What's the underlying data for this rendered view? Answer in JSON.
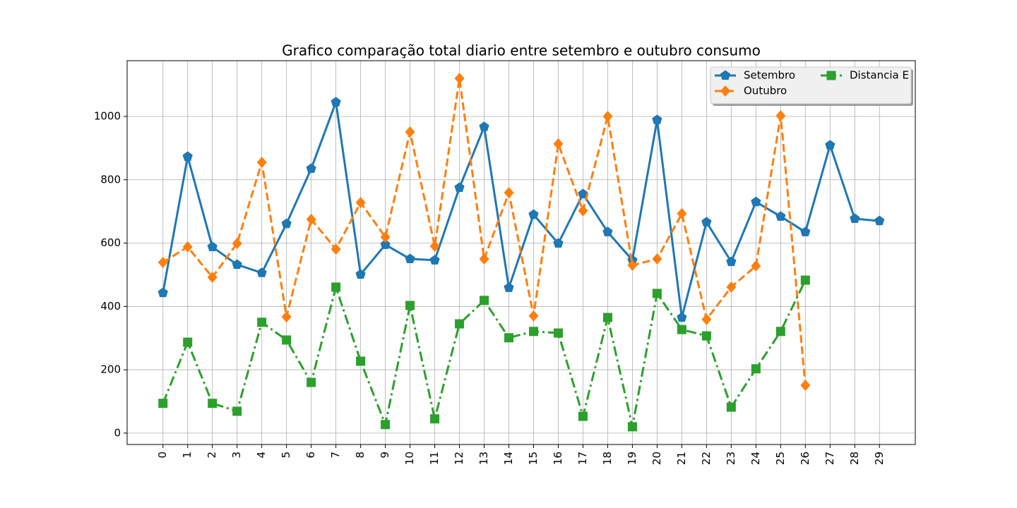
{
  "chart_data": {
    "type": "line",
    "title": "Grafico comparação total diario entre setembro e outubro consumo",
    "x": [
      0,
      1,
      2,
      3,
      4,
      5,
      6,
      7,
      8,
      9,
      10,
      11,
      12,
      13,
      14,
      15,
      16,
      17,
      18,
      19,
      20,
      21,
      22,
      23,
      24,
      25,
      26,
      27,
      28,
      29
    ],
    "series": [
      {
        "name": "Setembro",
        "color": "#1f77b4",
        "linestyle": "solid",
        "marker": "pentagon",
        "values": [
          443,
          873,
          588,
          532,
          506,
          661,
          835,
          1045,
          501,
          595,
          550,
          546,
          775,
          967,
          459,
          690,
          599,
          755,
          635,
          546,
          989,
          365,
          666,
          541,
          730,
          684,
          635,
          909,
          677,
          670
        ]
      },
      {
        "name": "Outubro",
        "color": "#ff7f0e",
        "linestyle": "dashed",
        "marker": "diamond",
        "values": [
          539,
          588,
          492,
          599,
          855,
          367,
          675,
          581,
          728,
          619,
          951,
          590,
          1120,
          550,
          759,
          370,
          913,
          702,
          1000,
          530,
          550,
          693,
          359,
          461,
          528,
          1002,
          151,
          null,
          null,
          null
        ]
      },
      {
        "name": "Distancia E",
        "color": "#2ca02c",
        "linestyle": "dashdot",
        "marker": "square",
        "values": [
          94,
          287,
          94,
          69,
          350,
          294,
          160,
          461,
          227,
          27,
          403,
          45,
          345,
          419,
          301,
          321,
          316,
          53,
          365,
          20,
          441,
          327,
          307,
          82,
          203,
          321,
          483,
          null,
          null,
          null
        ]
      }
    ],
    "xlim": [
      -1.45,
      30.45
    ],
    "ylim": [
      -36,
      1176
    ],
    "xticks": [
      0,
      1,
      2,
      3,
      4,
      5,
      6,
      7,
      8,
      9,
      10,
      11,
      12,
      13,
      14,
      15,
      16,
      17,
      18,
      19,
      20,
      21,
      22,
      23,
      24,
      25,
      26,
      27,
      28,
      29
    ],
    "yticks": [
      0,
      200,
      400,
      600,
      800,
      1000
    ],
    "grid": true,
    "legend": "upper right",
    "legend_columns": 2
  }
}
